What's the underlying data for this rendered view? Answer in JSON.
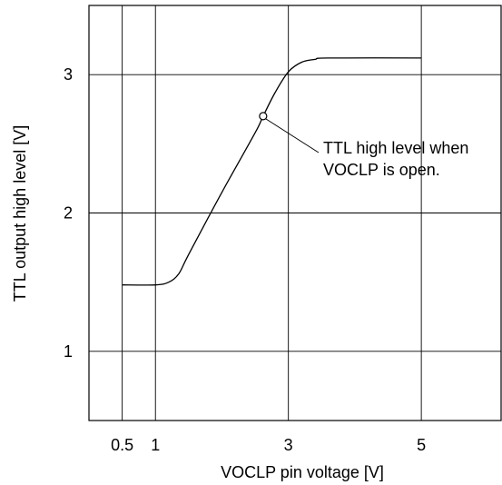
{
  "chart_data": {
    "type": "line",
    "title": "",
    "xlabel": "VOCLP pin voltage [V]",
    "ylabel": "TTL output high level [V]",
    "xlim": [
      0,
      6.2
    ],
    "ylim": [
      0.5,
      3.5
    ],
    "grid": true,
    "x_ticks": [
      {
        "value": 0.5,
        "label": "0.5"
      },
      {
        "value": 1,
        "label": "1"
      },
      {
        "value": 3,
        "label": "3"
      },
      {
        "value": 5,
        "label": "5"
      }
    ],
    "y_ticks": [
      {
        "value": 1,
        "label": "1"
      },
      {
        "value": 2,
        "label": "2"
      },
      {
        "value": 3,
        "label": "3"
      }
    ],
    "series": [
      {
        "points": [
          [
            0.5,
            1.48
          ],
          [
            1.0,
            1.48
          ],
          [
            1.2,
            1.5
          ],
          [
            1.35,
            1.56
          ],
          [
            1.5,
            1.7
          ],
          [
            2.0,
            2.15
          ],
          [
            2.5,
            2.58
          ],
          [
            2.62,
            2.7
          ],
          [
            2.8,
            2.87
          ],
          [
            3.0,
            3.02
          ],
          [
            3.2,
            3.09
          ],
          [
            3.4,
            3.11
          ],
          [
            3.6,
            3.12
          ],
          [
            5.0,
            3.12
          ]
        ]
      }
    ],
    "annotation": {
      "text_lines": [
        "TTL high level when",
        "VOCLP is open."
      ],
      "point": [
        2.62,
        2.7
      ]
    }
  }
}
